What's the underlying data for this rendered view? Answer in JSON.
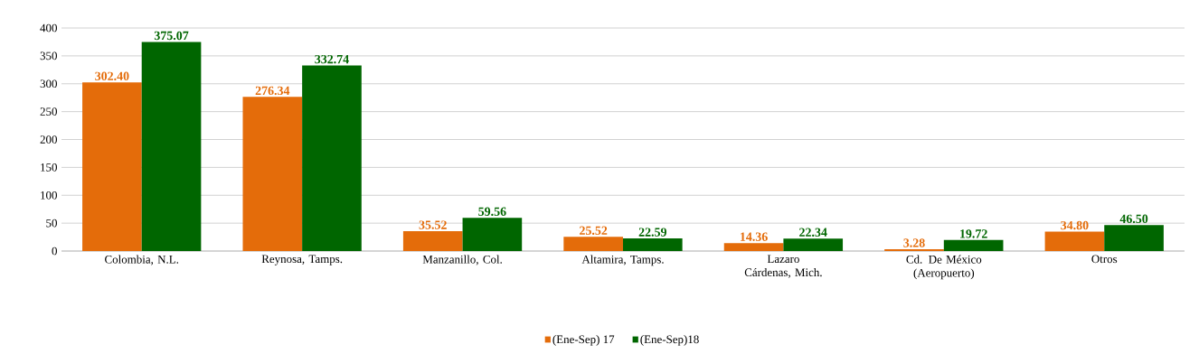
{
  "chart_data": {
    "type": "bar",
    "categories": [
      "Colombia, N.L.",
      "Reynosa, Tamps.",
      "Manzanillo, Col.",
      "Altamira, Tamps.",
      "Lazaro Cárdenas, Mich.",
      "Cd. De México (Aeropuerto)",
      "Otros"
    ],
    "series": [
      {
        "name": "(Ene-Sep) 17",
        "color": "#e46c0a",
        "values": [
          302.4,
          276.34,
          35.52,
          25.52,
          14.36,
          3.28,
          34.8
        ],
        "value_labels": [
          "302.40",
          "276.34",
          "35.52",
          "25.52",
          "14.36",
          "3.28",
          "34.80"
        ]
      },
      {
        "name": "(Ene-Sep)18",
        "color": "#006600",
        "values": [
          375.07,
          332.74,
          59.56,
          22.59,
          22.34,
          19.72,
          46.5
        ],
        "value_labels": [
          "375.07",
          "332.74",
          "59.56",
          "22.59",
          "22.34",
          "19.72",
          "46.50"
        ]
      }
    ],
    "ylim": [
      0,
      400
    ],
    "yticks": [
      0,
      50,
      100,
      150,
      200,
      250,
      300,
      350,
      400
    ],
    "grid": "y",
    "legend": "bottom"
  }
}
